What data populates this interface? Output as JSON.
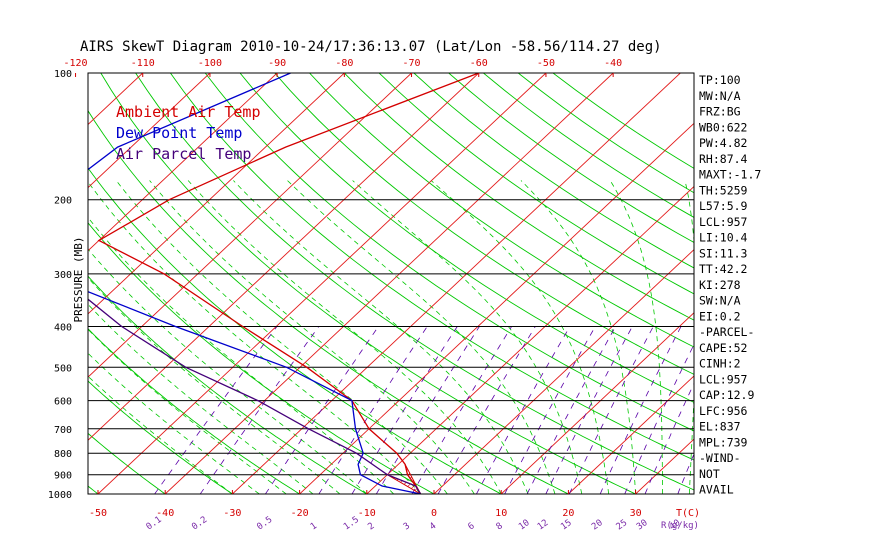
{
  "title": "AIRS SkewT Diagram 2010-10-24/17:36:13.07 (Lat/Lon -58.56/114.27 deg)",
  "colors": {
    "temp_line": "#d40000",
    "dew_line": "#0000cc",
    "parcel_line": "#44007a",
    "isotherm": "#e31b1b",
    "dry_adiabat": "#00c800",
    "moist_adiabat": "#00c800",
    "mixing_ratio": "#5a00a8",
    "isobar": "#000000",
    "label_red": "#d40000",
    "label_purple": "#7a2aa8"
  },
  "legend": [
    {
      "label": "Ambient Air Temp",
      "color": "#d40000"
    },
    {
      "label": "Dew Point Temp",
      "color": "#0000cc"
    },
    {
      "label": "Air Parcel Temp",
      "color": "#44007a"
    }
  ],
  "chart_data": {
    "type": "line",
    "ylabel": "PRESSURE (MB)",
    "pressure_ticks": [
      "100",
      "200",
      "300",
      "400",
      "500",
      "600",
      "700",
      "800",
      "900",
      "1000"
    ],
    "top_temp_ticks": [
      "-120",
      "-110",
      "-100",
      "-90",
      "-80",
      "-70",
      "-60",
      "-50",
      "-40"
    ],
    "bottom_temp_ticks": [
      "-50",
      "-40",
      "-30",
      "-20",
      "-10",
      "0",
      "10",
      "20",
      "30",
      "T(C)"
    ],
    "mixing_ratio_ticks": [
      "0.1",
      "0.2",
      "0.5",
      "1",
      "1.5",
      "2",
      "3",
      "4",
      "6",
      "8",
      "10",
      "12",
      "15",
      "20",
      "25",
      "30",
      "40",
      "R(g/kg)"
    ],
    "series": [
      {
        "name": "Ambient Air Temp",
        "points": [
          {
            "p": 100,
            "t": -60
          },
          {
            "p": 150,
            "t": -77
          },
          {
            "p": 200,
            "t": -86
          },
          {
            "p": 250,
            "t": -90
          },
          {
            "p": 300,
            "t": -75
          },
          {
            "p": 400,
            "t": -55
          },
          {
            "p": 500,
            "t": -39
          },
          {
            "p": 600,
            "t": -27
          },
          {
            "p": 700,
            "t": -20
          },
          {
            "p": 800,
            "t": -12
          },
          {
            "p": 850,
            "t": -9
          },
          {
            "p": 900,
            "t": -7
          },
          {
            "p": 957,
            "t": -4
          },
          {
            "p": 1000,
            "t": -2
          }
        ]
      },
      {
        "name": "Dew Point Temp",
        "points": [
          {
            "p": 100,
            "t": -88
          },
          {
            "p": 150,
            "t": -102
          },
          {
            "p": 200,
            "t": -104
          },
          {
            "p": 250,
            "t": -102
          },
          {
            "p": 300,
            "t": -93
          },
          {
            "p": 400,
            "t": -65
          },
          {
            "p": 500,
            "t": -42
          },
          {
            "p": 600,
            "t": -27
          },
          {
            "p": 700,
            "t": -22
          },
          {
            "p": 800,
            "t": -17
          },
          {
            "p": 850,
            "t": -16
          },
          {
            "p": 900,
            "t": -14
          },
          {
            "p": 957,
            "t": -9
          },
          {
            "p": 1000,
            "t": -2
          }
        ]
      },
      {
        "name": "Air Parcel Temp",
        "points": [
          {
            "p": 1000,
            "t": -2
          },
          {
            "p": 957,
            "t": -4
          },
          {
            "p": 900,
            "t": -10
          },
          {
            "p": 800,
            "t": -18
          },
          {
            "p": 700,
            "t": -29
          },
          {
            "p": 600,
            "t": -41
          },
          {
            "p": 500,
            "t": -57
          },
          {
            "p": 400,
            "t": -73
          },
          {
            "p": 300,
            "t": -91
          },
          {
            "p": 250,
            "t": -103
          },
          {
            "p": 200,
            "t": -114
          },
          {
            "p": 150,
            "t": -124
          }
        ]
      }
    ],
    "p_range": [
      100,
      1000
    ],
    "log_pressure": true,
    "grid": true
  },
  "indices": [
    "TP:100",
    "MW:N/A",
    "FRZ:BG",
    "WB0:622",
    "PW:4.82",
    "RH:87.4",
    "MAXT:-1.7",
    "TH:5259",
    "L57:5.9",
    "LCL:957",
    "LI:10.4",
    "SI:11.3",
    "TT:42.2",
    "KI:278",
    "SW:N/A",
    "EI:0.2",
    "-PARCEL-",
    "CAPE:52",
    "CINH:2",
    "LCL:957",
    "CAP:12.9",
    "LFC:956",
    "EL:837",
    "MPL:739",
    "-WIND-",
    "NOT",
    "AVAIL"
  ]
}
